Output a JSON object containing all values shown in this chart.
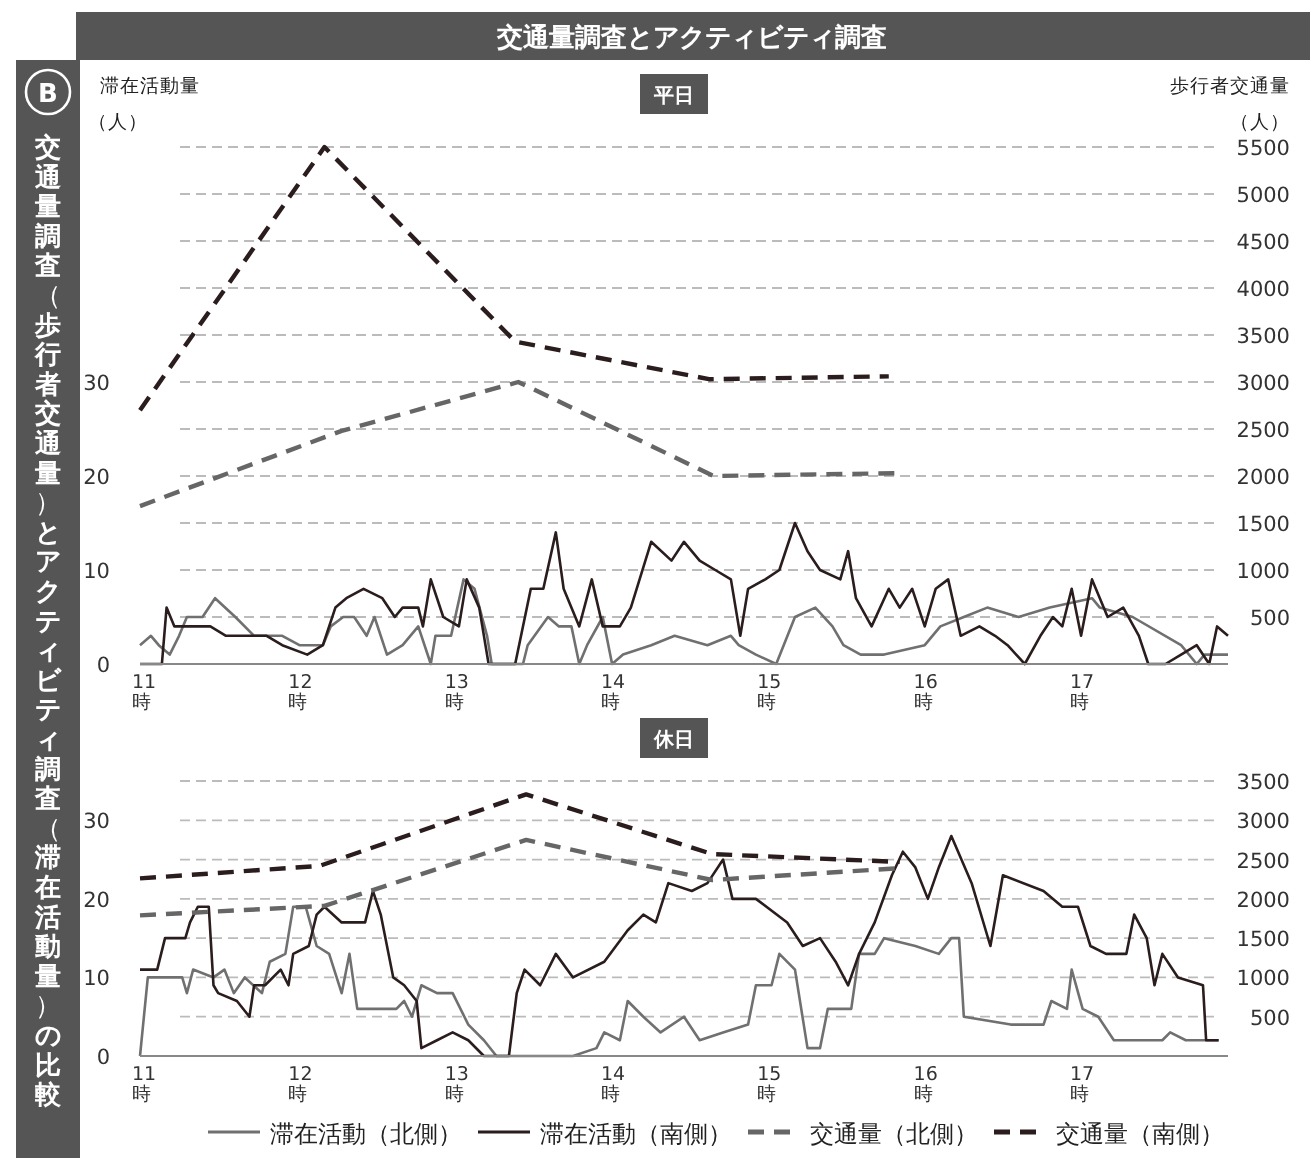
{
  "chart_data": [
    {
      "type": "line",
      "title": "交通量調査とアクティビティ調査",
      "subtitle": "平日",
      "ylabel": "滞在活動量（人）",
      "y2label": "歩行者交通量（人）",
      "annotations": [
        "B",
        "交通量調査（歩行者交通量）とアクティビティ調査（滞在活動量）の比較"
      ],
      "xlim": [
        11,
        17.96
      ],
      "xticks": [
        {
          "value": 11,
          "label": "11時"
        },
        {
          "value": 12,
          "label": "12時"
        },
        {
          "value": 13,
          "label": "13時"
        },
        {
          "value": 14,
          "label": "14時"
        },
        {
          "value": 15,
          "label": "15時"
        },
        {
          "value": 16,
          "label": "16時"
        },
        {
          "value": 17,
          "label": "17時"
        }
      ],
      "ylim": [
        0,
        55
      ],
      "yticks": [
        0,
        {
          "value": 5,
          "label": null
        },
        10,
        {
          "value": 15,
          "label": null
        },
        20,
        {
          "value": 25,
          "label": null
        },
        30,
        {
          "value": 35,
          "label": null
        },
        {
          "value": 40,
          "label": null
        },
        {
          "value": 45,
          "label": null
        },
        {
          "value": 50,
          "label": null
        },
        {
          "value": 55,
          "label": null
        }
      ],
      "y2lim": [
        0,
        5500
      ],
      "y2ticks": [
        500,
        1000,
        1500,
        2000,
        2500,
        3000,
        3500,
        4000,
        4500,
        5000,
        5500
      ],
      "grid": "y",
      "legend": false,
      "series": [
        {
          "color": "#707070",
          "line_style": "solid",
          "x": [
            11.0,
            11.07,
            11.12,
            11.19,
            11.25,
            11.3,
            11.4,
            11.48,
            11.61,
            11.73,
            11.91,
            12.02,
            12.17,
            12.22,
            12.3,
            12.37,
            12.45,
            12.5,
            12.58,
            12.68,
            12.78,
            12.86,
            12.89,
            12.99,
            13.07,
            13.14,
            13.22,
            13.25,
            13.45,
            13.48,
            13.61,
            13.68,
            13.76,
            13.81,
            13.86,
            13.96,
            14.02,
            14.09,
            14.27,
            14.42,
            14.63,
            14.78,
            14.83,
            14.94,
            15.07,
            15.19,
            15.32,
            15.43,
            15.5,
            15.61,
            15.76,
            16.02,
            16.12,
            16.27,
            16.42,
            16.62,
            16.82,
            17.09,
            17.14,
            17.35,
            17.66,
            17.76,
            17.81,
            17.96
          ],
          "values": [
            2,
            3,
            2,
            1,
            3,
            5,
            5,
            7,
            5,
            3,
            3,
            2,
            2,
            4,
            5,
            5,
            3,
            5,
            1,
            2,
            4,
            0,
            3,
            3,
            9,
            8,
            3,
            0,
            0,
            2,
            5,
            4,
            4,
            0,
            2,
            5,
            0,
            1,
            2,
            3,
            2,
            3,
            2,
            1,
            0,
            5,
            6,
            4,
            2,
            1,
            1,
            2,
            4,
            5,
            6,
            5,
            6,
            7,
            6,
            5,
            2,
            0,
            1,
            1
          ]
        },
        {
          "color": "#2b1d1d",
          "line_style": "solid",
          "x": [
            11.0,
            11.14,
            11.17,
            11.22,
            11.45,
            11.55,
            11.81,
            11.91,
            12.07,
            12.17,
            12.25,
            12.32,
            12.43,
            12.55,
            12.63,
            12.68,
            12.78,
            12.81,
            12.86,
            12.94,
            13.04,
            13.09,
            13.17,
            13.23,
            13.4,
            13.5,
            13.58,
            13.66,
            13.71,
            13.81,
            13.89,
            13.96,
            14.07,
            14.14,
            14.27,
            14.4,
            14.48,
            14.58,
            14.68,
            14.78,
            14.84,
            14.89,
            15.0,
            15.09,
            15.19,
            15.27,
            15.35,
            15.48,
            15.53,
            15.58,
            15.68,
            15.79,
            15.86,
            15.94,
            16.02,
            16.09,
            16.17,
            16.25,
            16.37,
            16.47,
            16.55,
            16.66,
            16.76,
            16.84,
            16.9,
            16.96,
            17.02,
            17.09,
            17.19,
            17.29,
            17.39,
            17.45,
            17.56,
            17.66,
            17.76,
            17.84,
            17.89,
            17.96
          ],
          "values": [
            0,
            0,
            6,
            4,
            4,
            3,
            3,
            2,
            1,
            2,
            6,
            7,
            8,
            7,
            5,
            6,
            6,
            4,
            9,
            5,
            4,
            9,
            6,
            0,
            0,
            8,
            8,
            14,
            8,
            4,
            9,
            4,
            4,
            6,
            13,
            11,
            13,
            11,
            10,
            9,
            3,
            8,
            9,
            10,
            15,
            12,
            10,
            9,
            12,
            7,
            4,
            8,
            6,
            8,
            4,
            8,
            9,
            3,
            4,
            3,
            2,
            0,
            3,
            5,
            4,
            8,
            3,
            9,
            5,
            6,
            3,
            0,
            0,
            1,
            2,
            0,
            4,
            3
          ]
        },
        {
          "color": "#666666",
          "line_style": "dashed",
          "axis": "y2",
          "x": [
            11.0,
            12.29,
            13.42,
            14.67,
            15.83
          ],
          "values": [
            1680,
            2480,
            3000,
            2000,
            2030
          ]
        },
        {
          "color": "#2b1d1d",
          "line_style": "dashed",
          "axis": "y2",
          "x": [
            11.0,
            12.18,
            13.4,
            14.64,
            15.79
          ],
          "values": [
            2700,
            5500,
            3430,
            3030,
            3060
          ]
        }
      ]
    },
    {
      "type": "line",
      "subtitle": "休日",
      "xlim": [
        11,
        17.96
      ],
      "xticks": [
        {
          "value": 11,
          "label": "11時"
        },
        {
          "value": 12,
          "label": "12時"
        },
        {
          "value": 13,
          "label": "13時"
        },
        {
          "value": 14,
          "label": "14時"
        },
        {
          "value": 15,
          "label": "15時"
        },
        {
          "value": 16,
          "label": "16時"
        },
        {
          "value": 17,
          "label": "17時"
        }
      ],
      "ylim": [
        0,
        35
      ],
      "yticks": [
        0,
        {
          "value": 5,
          "label": null
        },
        10,
        {
          "value": 15,
          "label": null
        },
        20,
        {
          "value": 25,
          "label": null
        },
        30,
        {
          "value": 35,
          "label": null
        }
      ],
      "y2lim": [
        0,
        3500
      ],
      "y2ticks": [
        500,
        1000,
        1500,
        2000,
        2500,
        3000,
        3500
      ],
      "grid": "y",
      "legend": "bottom",
      "series": [
        {
          "name": "滞在活動（北側）",
          "color": "#707070",
          "line_style": "solid",
          "x": [
            11.0,
            11.05,
            11.27,
            11.3,
            11.34,
            11.47,
            11.54,
            11.6,
            11.67,
            11.78,
            11.83,
            11.93,
            11.98,
            12.06,
            12.13,
            12.21,
            12.29,
            12.34,
            12.39,
            12.64,
            12.69,
            12.74,
            12.8,
            12.9,
            13.0,
            13.1,
            13.2,
            13.28,
            13.77,
            13.92,
            13.97,
            14.07,
            14.12,
            14.22,
            14.33,
            14.48,
            14.58,
            14.73,
            14.89,
            14.94,
            15.04,
            15.09,
            15.19,
            15.27,
            15.35,
            15.4,
            15.55,
            15.6,
            15.7,
            15.76,
            15.96,
            16.11,
            16.19,
            16.24,
            16.27,
            16.57,
            16.78,
            16.83,
            16.93,
            16.96,
            17.03,
            17.13,
            17.23,
            17.54,
            17.59,
            17.69,
            17.9
          ],
          "values": [
            0,
            10,
            10,
            8,
            11,
            10,
            11,
            8,
            10,
            8,
            12,
            13,
            19,
            19,
            14,
            13,
            8,
            13,
            6,
            6,
            7,
            5,
            9,
            8,
            8,
            4,
            2,
            0,
            0,
            1,
            3,
            2,
            7,
            5,
            3,
            5,
            2,
            3,
            4,
            9,
            9,
            13,
            11,
            1,
            1,
            6,
            6,
            13,
            13,
            15,
            14,
            13,
            15,
            15,
            5,
            4,
            4,
            7,
            6,
            11,
            6,
            5,
            2,
            2,
            3,
            2,
            2
          ]
        },
        {
          "name": "滞在活動（南側）",
          "color": "#2b1d1d",
          "line_style": "solid",
          "x": [
            11.0,
            11.11,
            11.16,
            11.29,
            11.32,
            11.37,
            11.44,
            11.47,
            11.5,
            11.62,
            11.7,
            11.73,
            11.8,
            11.9,
            11.95,
            11.98,
            12.08,
            12.13,
            12.18,
            12.29,
            12.44,
            12.49,
            12.54,
            12.62,
            12.69,
            12.77,
            12.8,
            12.9,
            13.0,
            13.1,
            13.2,
            13.36,
            13.41,
            13.46,
            13.56,
            13.66,
            13.77,
            13.97,
            14.12,
            14.22,
            14.3,
            14.38,
            14.53,
            14.63,
            14.73,
            14.79,
            14.94,
            15.14,
            15.24,
            15.35,
            15.45,
            15.53,
            15.6,
            15.7,
            15.81,
            15.88,
            15.96,
            16.04,
            16.11,
            16.19,
            16.32,
            16.44,
            16.52,
            16.78,
            16.9,
            17.0,
            17.08,
            17.18,
            17.31,
            17.36,
            17.44,
            17.49,
            17.54,
            17.64,
            17.8,
            17.82,
            17.9
          ],
          "values": [
            11,
            11,
            15,
            15,
            17,
            19,
            19,
            9,
            8,
            7,
            5,
            9,
            9,
            11,
            9,
            13,
            14,
            18,
            19,
            17,
            17,
            21,
            18,
            10,
            9,
            7,
            1,
            2,
            3,
            2,
            0,
            0,
            8,
            11,
            9,
            13,
            10,
            12,
            16,
            18,
            17,
            22,
            21,
            22,
            25,
            20,
            20,
            17,
            14,
            15,
            12,
            9,
            13,
            17,
            23,
            26,
            24,
            20,
            24,
            28,
            22,
            14,
            23,
            21,
            19,
            19,
            14,
            13,
            13,
            18,
            15,
            9,
            13,
            10,
            9,
            2,
            2
          ]
        },
        {
          "name": "交通量（北側）",
          "color": "#666666",
          "line_style": "dashed",
          "axis": "y2",
          "x": [
            11.0,
            12.18,
            13.47,
            14.66,
            15.86
          ],
          "values": [
            1790,
            1910,
            2750,
            2240,
            2390
          ]
        },
        {
          "name": "交通量（南側）",
          "color": "#2b1d1d",
          "line_style": "dashed",
          "axis": "y2",
          "x": [
            11.0,
            12.15,
            13.47,
            14.66,
            15.86
          ],
          "values": [
            2260,
            2420,
            3330,
            2570,
            2470
          ]
        }
      ]
    }
  ]
}
